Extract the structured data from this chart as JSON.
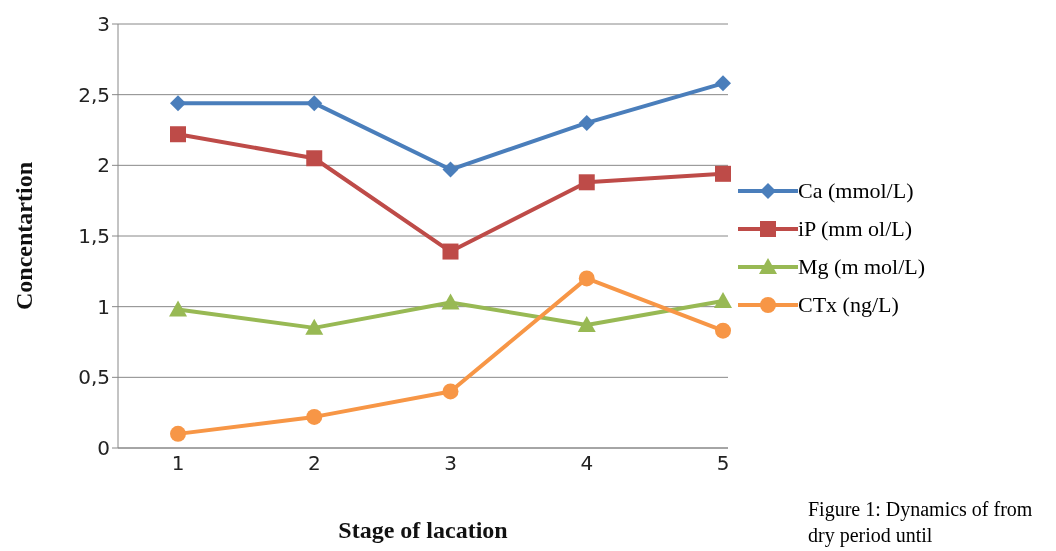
{
  "chart_data": {
    "type": "line",
    "xlabel": "Stage of lacation",
    "ylabel": "Concentartion",
    "categories": [
      "1",
      "2",
      "3",
      "4",
      "5"
    ],
    "series": [
      {
        "name": "Ca (mmol/L)",
        "color": "#4a7ebb",
        "marker": "diamond",
        "values": [
          2.44,
          2.44,
          1.97,
          2.3,
          2.58
        ]
      },
      {
        "name": "iP (mm ol/L)",
        "color": "#be4b48",
        "marker": "square",
        "values": [
          2.22,
          2.05,
          1.39,
          1.88,
          1.94
        ]
      },
      {
        "name": "Mg (m mol/L)",
        "color": "#98b954",
        "marker": "triangle",
        "values": [
          0.98,
          0.85,
          1.03,
          0.87,
          1.04
        ]
      },
      {
        "name": "CTx (ng/L)",
        "color": "#f79646",
        "marker": "circle",
        "values": [
          0.1,
          0.22,
          0.4,
          1.2,
          0.83
        ]
      }
    ],
    "ylim": [
      0,
      3
    ],
    "yticks": [
      0,
      {
        "value": 0.5,
        "label": "0,5"
      },
      1,
      {
        "value": 1.5,
        "label": "1,5"
      },
      2,
      {
        "value": 2.5,
        "label": "2,5"
      },
      3
    ],
    "grid": "y",
    "legend": "right",
    "annotations": [
      "Figure 1: Dynamics of from dry period until"
    ]
  }
}
